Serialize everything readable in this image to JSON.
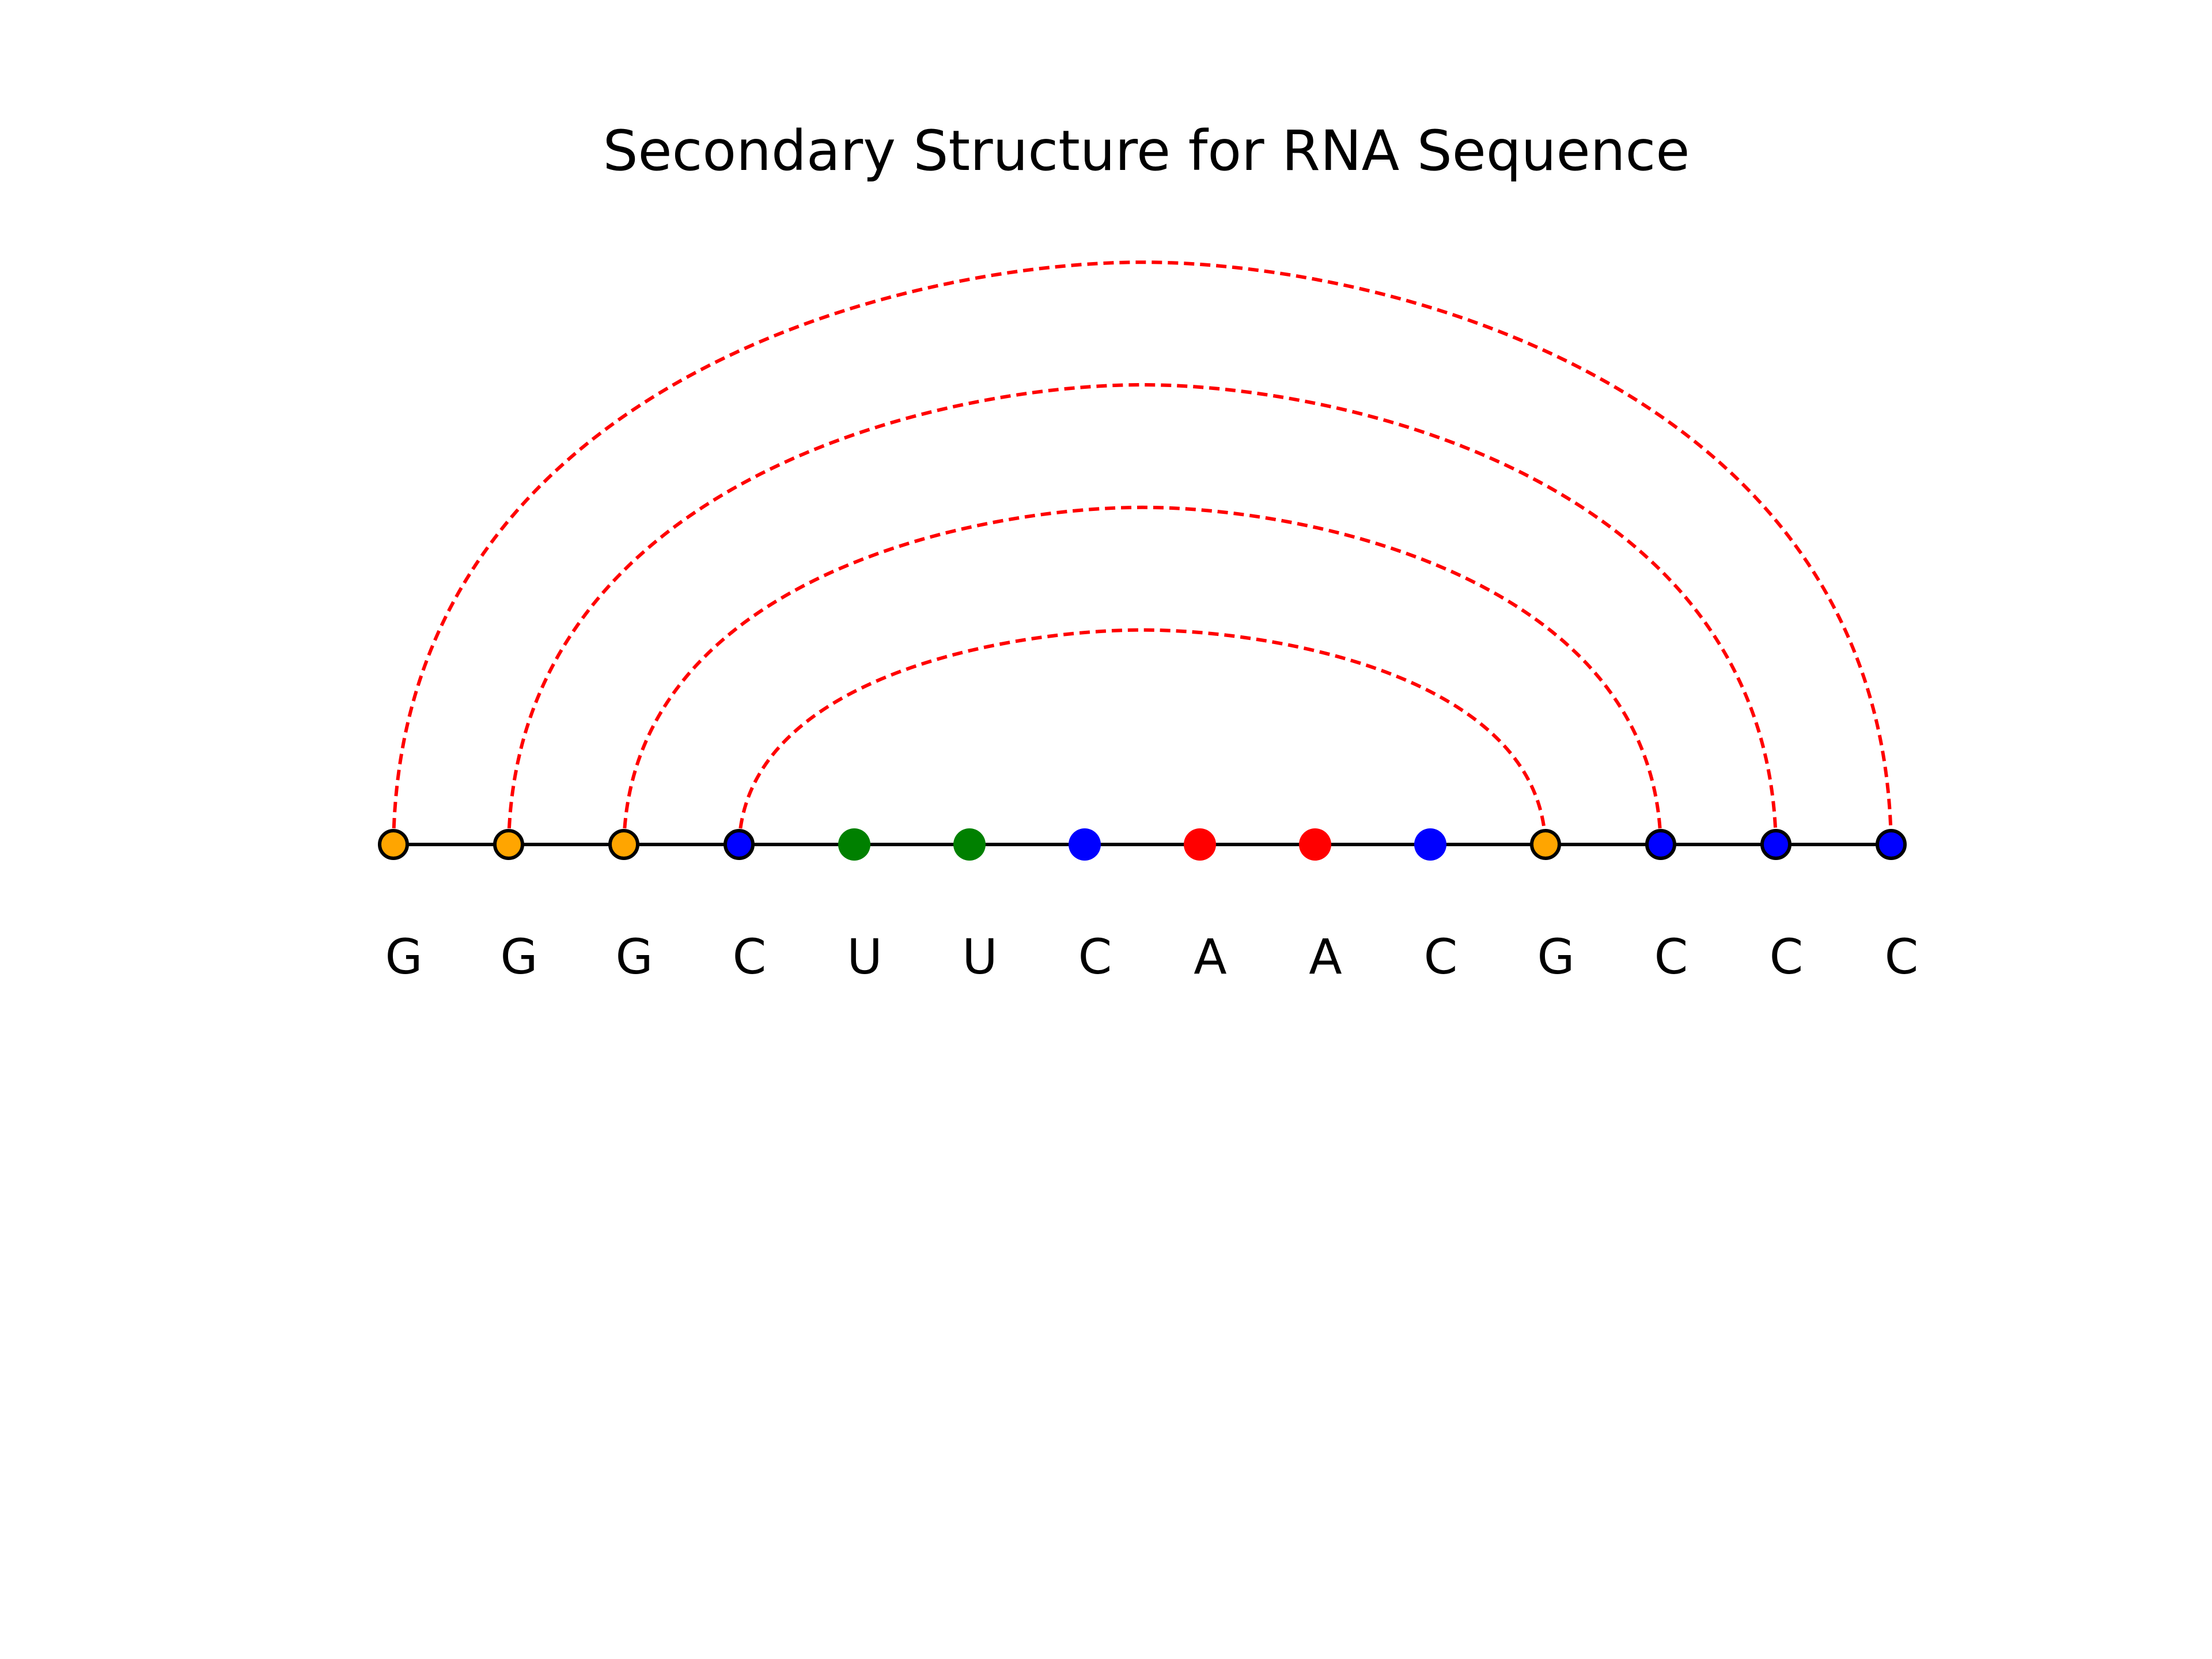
{
  "title": "Secondary Structure for RNA Sequence",
  "sequence": [
    "G",
    "G",
    "G",
    "C",
    "U",
    "U",
    "C",
    "A",
    "A",
    "C",
    "G",
    "C",
    "C",
    "C"
  ],
  "pairs": [
    [
      0,
      13
    ],
    [
      1,
      12
    ],
    [
      2,
      11
    ],
    [
      3,
      10
    ]
  ],
  "nucleotide_colors": {
    "G": "#ffa500",
    "C": "#0000ff",
    "U": "#008000",
    "A": "#ff0000"
  },
  "pair_line_color": "#ff0000",
  "backbone_color": "#000000"
}
